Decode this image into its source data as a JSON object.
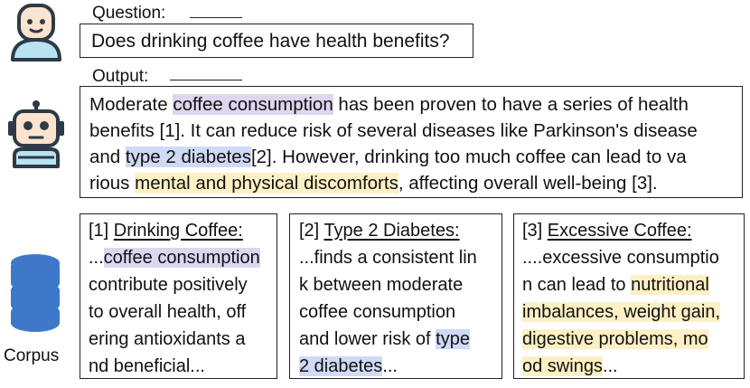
{
  "question": {
    "label": "Question:",
    "text": "Does drinking coffee have health benefits?"
  },
  "output": {
    "label": "Output:",
    "line1": {
      "a": "Moderate ",
      "hl": "coffee consumption",
      "b": " has been proven to have a series of health"
    },
    "line2": {
      "a": "benefits [1]. It can reduce risk of several diseases like Parkinson's disease"
    },
    "line3": {
      "a": "and ",
      "hl": "type 2 diabetes",
      "b": "[2]. However, drinking too much coffee can lead to va"
    },
    "line4": {
      "a": "rious ",
      "hl": "mental and physical discomforts",
      "b": ", affecting overall well-being [3]."
    }
  },
  "corpus_label": "Corpus",
  "docs": [
    {
      "ref": "[1] ",
      "title": "Drinking Coffee:",
      "line2": {
        "a": "...",
        "hl": "coffee consumption"
      },
      "line3": "contribute positively",
      "line4": "to overall health, off",
      "line5": "ering antioxidants a",
      "line6": "nd beneficial..."
    },
    {
      "ref": "[2] ",
      "title": "Type 2 Diabetes:",
      "line2": "...finds a consistent lin",
      "line3": "k between moderate",
      "line4": "coffee consumption",
      "line5": {
        "a": "and lower risk of ",
        "hl": "type"
      },
      "line6": {
        "hl": "2 diabetes",
        "b": "..."
      }
    },
    {
      "ref": "[3] ",
      "title": "Excessive Coffee:",
      "line2": "....excessive consumptio",
      "line3": {
        "a": "n can lead to ",
        "hl": "nutritional"
      },
      "line4": {
        "hl": "imbalances, weight gain,"
      },
      "line5": {
        "hl": "digestive problems, mo"
      },
      "line6": {
        "hl": "od swings",
        "b": "..."
      }
    }
  ],
  "icons": {
    "user": "user-avatar-icon",
    "robot": "robot-icon",
    "database": "database-icon"
  },
  "colors": {
    "highlight_purple": "#dcd6ee",
    "highlight_blue": "#cfdaf6",
    "highlight_yellow": "#fdf0c4",
    "icon_face": "#fbe4cf",
    "icon_shirt": "#b9e3f1",
    "icon_dark": "#2e3a48",
    "database_blue": "#3f78c9"
  }
}
